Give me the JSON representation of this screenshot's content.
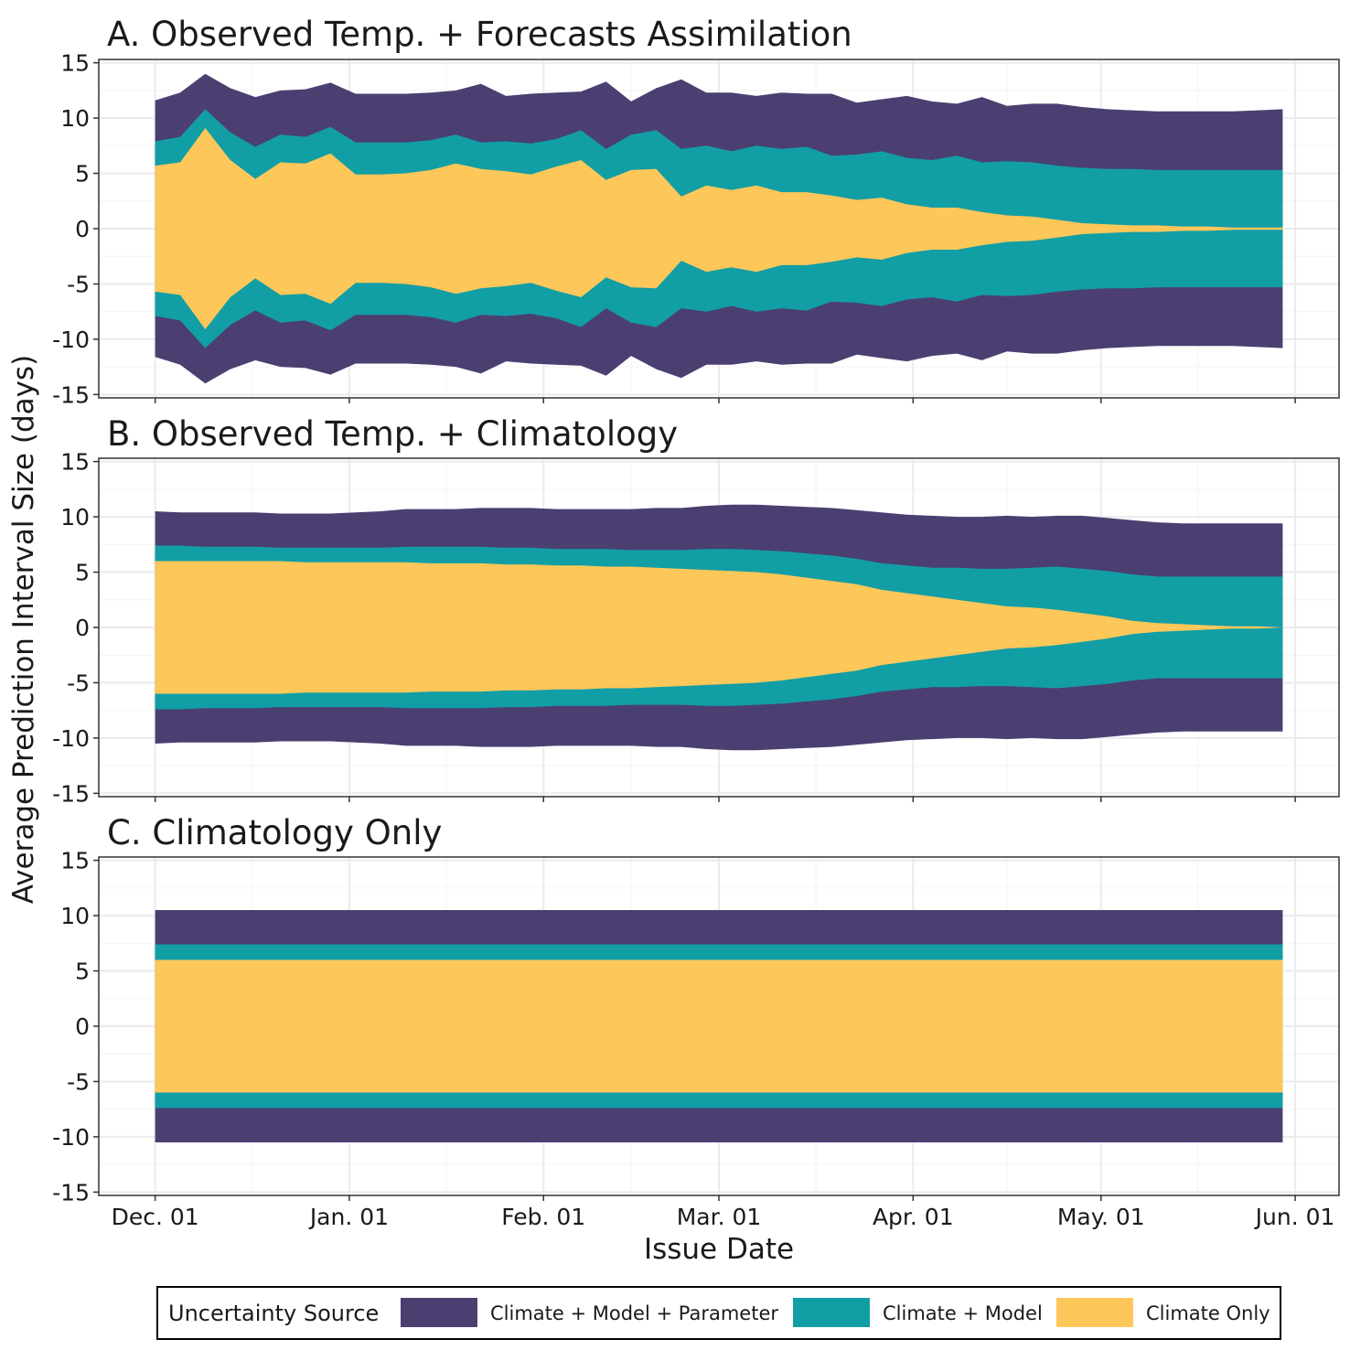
{
  "colors": {
    "climate_model_parameter": "#4b3f72",
    "climate_model": "#129ea5",
    "climate_only": "#fdc75a",
    "grid_major": "#ebebeb",
    "grid_minor": "#f4f4f4",
    "panel_border": "#333333"
  },
  "chart_data": {
    "type": "area",
    "ylabel": "Average Prediction Interval Size (days)",
    "xlabel": "Issue Date",
    "x_ticks": [
      "Dec. 01",
      "Jan. 01",
      "Feb. 01",
      "Mar. 01",
      "Apr. 01",
      "May. 01",
      "Jun. 01"
    ],
    "x_tick_dates": [
      "2020-12-01",
      "2021-01-01",
      "2021-02-01",
      "2021-03-01",
      "2021-04-01",
      "2021-05-01",
      "2021-06-01"
    ],
    "xlim": [
      "2020-11-22",
      "2021-06-08"
    ],
    "y_ticks": [
      "15",
      "10",
      "5",
      "0",
      "-5",
      "-10",
      "-15"
    ],
    "y_tick_values": [
      15,
      10,
      5,
      0,
      -5,
      -10,
      -15
    ],
    "ylim": [
      -15.3,
      15.3
    ],
    "grid": true,
    "legend": {
      "title": "Uncertainty Source",
      "placement": "bottom",
      "entries": [
        "Climate + Model + Parameter",
        "Climate + Model",
        "Climate Only"
      ]
    },
    "dates": [
      "2020-12-01",
      "2020-12-05",
      "2020-12-09",
      "2020-12-13",
      "2020-12-17",
      "2020-12-21",
      "2020-12-25",
      "2020-12-29",
      "2021-01-02",
      "2021-01-06",
      "2021-01-10",
      "2021-01-14",
      "2021-01-18",
      "2021-01-22",
      "2021-01-26",
      "2021-01-30",
      "2021-02-03",
      "2021-02-07",
      "2021-02-11",
      "2021-02-15",
      "2021-02-19",
      "2021-02-23",
      "2021-02-27",
      "2021-03-03",
      "2021-03-07",
      "2021-03-11",
      "2021-03-15",
      "2021-03-19",
      "2021-03-23",
      "2021-03-27",
      "2021-03-31",
      "2021-04-04",
      "2021-04-08",
      "2021-04-12",
      "2021-04-16",
      "2021-04-20",
      "2021-04-24",
      "2021-04-28",
      "2021-05-02",
      "2021-05-06",
      "2021-05-10",
      "2021-05-14",
      "2021-05-18",
      "2021-05-22",
      "2021-05-26",
      "2021-05-30"
    ],
    "panels": [
      {
        "title": "A. Observed Temp. + Forecasts Assimilation",
        "series": [
          {
            "name": "Climate + Model + Parameter",
            "values": [
              11.6,
              12.3,
              14.0,
              12.7,
              11.9,
              12.5,
              12.6,
              13.2,
              12.2,
              12.2,
              12.2,
              12.3,
              12.5,
              13.1,
              12.0,
              12.2,
              12.3,
              12.4,
              13.3,
              11.5,
              12.7,
              13.5,
              12.3,
              12.3,
              12.0,
              12.3,
              12.2,
              12.2,
              11.4,
              11.7,
              12.0,
              11.5,
              11.3,
              11.9,
              11.1,
              11.3,
              11.3,
              11.0,
              10.8,
              10.7,
              10.6,
              10.6,
              10.6,
              10.6,
              10.7,
              10.8
            ]
          },
          {
            "name": "Climate + Model",
            "values": [
              7.9,
              8.3,
              10.8,
              8.7,
              7.4,
              8.5,
              8.3,
              9.2,
              7.8,
              7.8,
              7.8,
              8.0,
              8.5,
              7.8,
              7.9,
              7.7,
              8.1,
              8.9,
              7.2,
              8.5,
              8.9,
              7.2,
              7.5,
              7.0,
              7.5,
              7.2,
              7.4,
              6.6,
              6.7,
              7.0,
              6.4,
              6.2,
              6.6,
              6.0,
              6.1,
              6.0,
              5.7,
              5.5,
              5.4,
              5.4,
              5.3,
              5.3,
              5.3,
              5.3,
              5.3,
              5.3
            ]
          },
          {
            "name": "Climate Only",
            "values": [
              5.7,
              6.0,
              9.1,
              6.2,
              4.5,
              6.0,
              5.9,
              6.8,
              4.9,
              4.9,
              5.0,
              5.3,
              5.9,
              5.4,
              5.2,
              4.9,
              5.6,
              6.2,
              4.4,
              5.3,
              5.4,
              2.9,
              3.9,
              3.5,
              3.9,
              3.3,
              3.3,
              3.0,
              2.6,
              2.8,
              2.2,
              1.9,
              1.9,
              1.5,
              1.2,
              1.1,
              0.8,
              0.5,
              0.4,
              0.3,
              0.3,
              0.2,
              0.2,
              0.1,
              0.1,
              0.1
            ]
          }
        ]
      },
      {
        "title": "B. Observed Temp. + Climatology",
        "series": [
          {
            "name": "Climate + Model + Parameter",
            "values": [
              10.5,
              10.4,
              10.4,
              10.4,
              10.4,
              10.3,
              10.3,
              10.3,
              10.4,
              10.5,
              10.7,
              10.7,
              10.7,
              10.8,
              10.8,
              10.8,
              10.7,
              10.7,
              10.7,
              10.7,
              10.8,
              10.8,
              11.0,
              11.1,
              11.1,
              11.0,
              10.9,
              10.8,
              10.6,
              10.4,
              10.2,
              10.1,
              10.0,
              10.0,
              10.1,
              10.0,
              10.1,
              10.1,
              9.9,
              9.7,
              9.5,
              9.4,
              9.4,
              9.4,
              9.4,
              9.4
            ]
          },
          {
            "name": "Climate + Model",
            "values": [
              7.4,
              7.4,
              7.3,
              7.3,
              7.3,
              7.2,
              7.2,
              7.2,
              7.2,
              7.2,
              7.3,
              7.3,
              7.3,
              7.3,
              7.2,
              7.2,
              7.1,
              7.1,
              7.1,
              7.0,
              7.0,
              7.0,
              7.1,
              7.1,
              7.0,
              6.9,
              6.7,
              6.5,
              6.2,
              5.8,
              5.6,
              5.4,
              5.4,
              5.3,
              5.3,
              5.4,
              5.5,
              5.3,
              5.1,
              4.8,
              4.6,
              4.6,
              4.6,
              4.6,
              4.6,
              4.6
            ]
          },
          {
            "name": "Climate Only",
            "values": [
              6.0,
              6.0,
              6.0,
              6.0,
              6.0,
              6.0,
              5.9,
              5.9,
              5.9,
              5.9,
              5.9,
              5.8,
              5.8,
              5.8,
              5.7,
              5.7,
              5.6,
              5.6,
              5.5,
              5.5,
              5.4,
              5.3,
              5.2,
              5.1,
              5.0,
              4.8,
              4.5,
              4.2,
              3.9,
              3.4,
              3.1,
              2.8,
              2.5,
              2.2,
              1.9,
              1.8,
              1.6,
              1.3,
              1.0,
              0.6,
              0.4,
              0.3,
              0.2,
              0.1,
              0.1,
              0.0
            ]
          }
        ]
      },
      {
        "title": "C. Climatology Only",
        "series": [
          {
            "name": "Climate + Model + Parameter",
            "values": [
              10.5,
              10.5,
              10.5,
              10.5,
              10.5,
              10.5,
              10.5,
              10.5,
              10.5,
              10.5,
              10.5,
              10.5,
              10.5,
              10.5,
              10.5,
              10.5,
              10.5,
              10.5,
              10.5,
              10.5,
              10.5,
              10.5,
              10.5,
              10.5,
              10.5,
              10.5,
              10.5,
              10.5,
              10.5,
              10.5,
              10.5,
              10.5,
              10.5,
              10.5,
              10.5,
              10.5,
              10.5,
              10.5,
              10.5,
              10.5,
              10.5,
              10.5,
              10.5,
              10.5,
              10.5,
              10.5
            ]
          },
          {
            "name": "Climate + Model",
            "values": [
              7.4,
              7.4,
              7.4,
              7.4,
              7.4,
              7.4,
              7.4,
              7.4,
              7.4,
              7.4,
              7.4,
              7.4,
              7.4,
              7.4,
              7.4,
              7.4,
              7.4,
              7.4,
              7.4,
              7.4,
              7.4,
              7.4,
              7.4,
              7.4,
              7.4,
              7.4,
              7.4,
              7.4,
              7.4,
              7.4,
              7.4,
              7.4,
              7.4,
              7.4,
              7.4,
              7.4,
              7.4,
              7.4,
              7.4,
              7.4,
              7.4,
              7.4,
              7.4,
              7.4,
              7.4,
              7.4
            ]
          },
          {
            "name": "Climate Only",
            "values": [
              6.0,
              6.0,
              6.0,
              6.0,
              6.0,
              6.0,
              6.0,
              6.0,
              6.0,
              6.0,
              6.0,
              6.0,
              6.0,
              6.0,
              6.0,
              6.0,
              6.0,
              6.0,
              6.0,
              6.0,
              6.0,
              6.0,
              6.0,
              6.0,
              6.0,
              6.0,
              6.0,
              6.0,
              6.0,
              6.0,
              6.0,
              6.0,
              6.0,
              6.0,
              6.0,
              6.0,
              6.0,
              6.0,
              6.0,
              6.0,
              6.0,
              6.0,
              6.0,
              6.0,
              6.0,
              6.0
            ]
          }
        ]
      }
    ]
  }
}
